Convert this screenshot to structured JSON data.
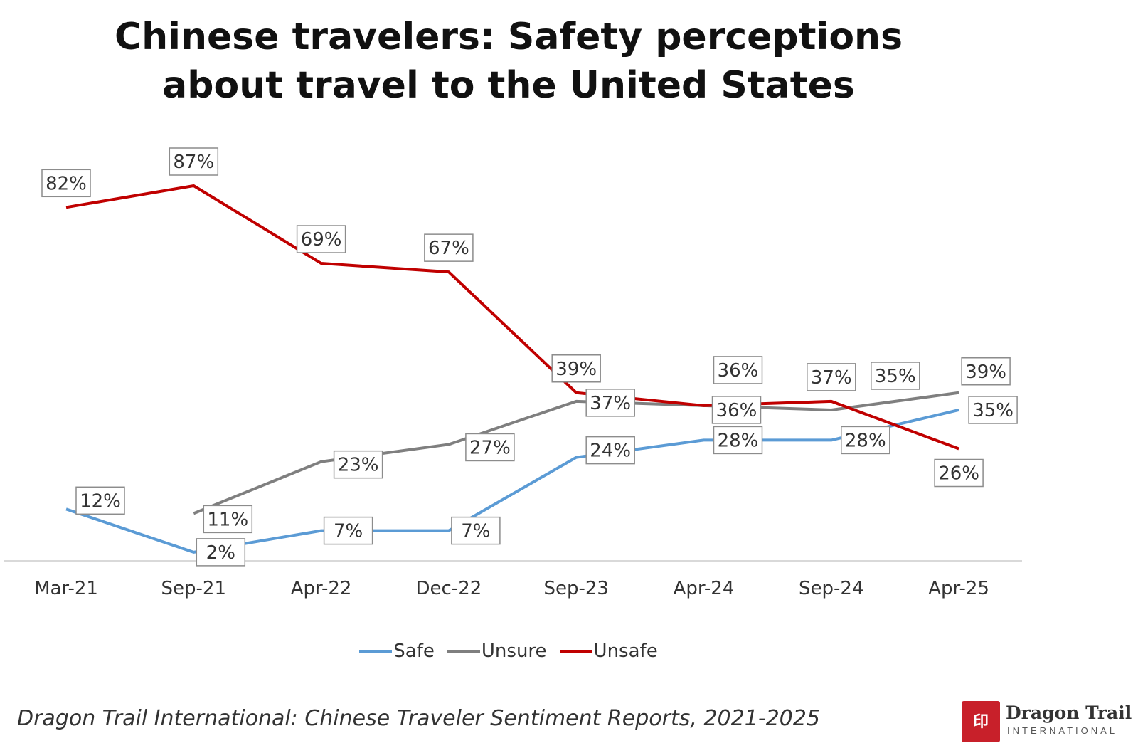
{
  "title_line1": "Chinese travelers: Safety perceptions",
  "title_line2": "about travel to the United States",
  "source": "Dragon Trail International: Chinese Traveler Sentiment Reports, 2021-2025",
  "logo": {
    "name": "Dragon Trail",
    "sub": "INTERNATIONAL"
  },
  "chart_data": {
    "type": "line",
    "categories": [
      "Mar-21",
      "Sep-21",
      "Apr-22",
      "Dec-22",
      "Sep-23",
      "Apr-24",
      "Sep-24",
      "Apr-25"
    ],
    "series": [
      {
        "name": "Safe",
        "color": "#5b9bd5",
        "values": [
          12,
          2,
          7,
          7,
          24,
          28,
          28,
          35
        ]
      },
      {
        "name": "Unsure",
        "color": "#7f7f7f",
        "values": [
          null,
          11,
          23,
          27,
          37,
          36,
          35,
          39
        ]
      },
      {
        "name": "Unsafe",
        "color": "#c00000",
        "values": [
          82,
          87,
          69,
          67,
          39,
          36,
          37,
          26
        ]
      }
    ],
    "data_label_suffix": "%",
    "ylim": [
      0,
      90
    ],
    "grid": false,
    "legend_position": "bottom"
  }
}
